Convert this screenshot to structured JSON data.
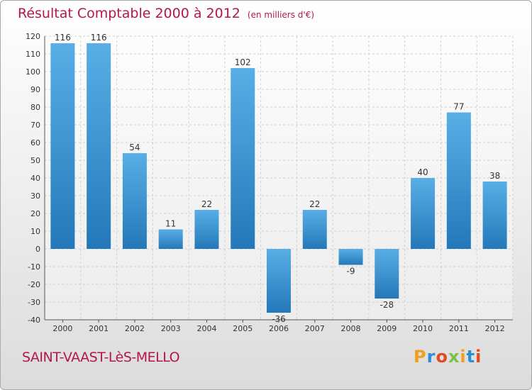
{
  "title": "Résultat Comptable 2000 à 2012",
  "subtitle": "(en milliers d'€)",
  "footer": {
    "place": "SAINT-VAAST-LèS-MELLO",
    "logo": "Proxiti"
  },
  "colors": {
    "title": "#b5174a",
    "bar_light": "#5aaee6",
    "bar_dark": "#2478b9",
    "grid": "#d0d0d0"
  },
  "chart_data": {
    "type": "bar",
    "title": "Résultat Comptable 2000 à 2012",
    "subtitle": "(en milliers d'€)",
    "xlabel": "",
    "ylabel": "",
    "categories": [
      "2000",
      "2001",
      "2002",
      "2003",
      "2004",
      "2005",
      "2006",
      "2007",
      "2008",
      "2009",
      "2010",
      "2011",
      "2012"
    ],
    "values": [
      116,
      116,
      54,
      11,
      22,
      102,
      -36,
      22,
      -9,
      -28,
      40,
      77,
      38
    ],
    "ylim": [
      -40,
      120
    ],
    "yticks": [
      120,
      110,
      100,
      90,
      80,
      70,
      60,
      50,
      40,
      30,
      20,
      10,
      0,
      -10,
      -20,
      -30,
      -40
    ],
    "grid": true,
    "legend": "none"
  }
}
